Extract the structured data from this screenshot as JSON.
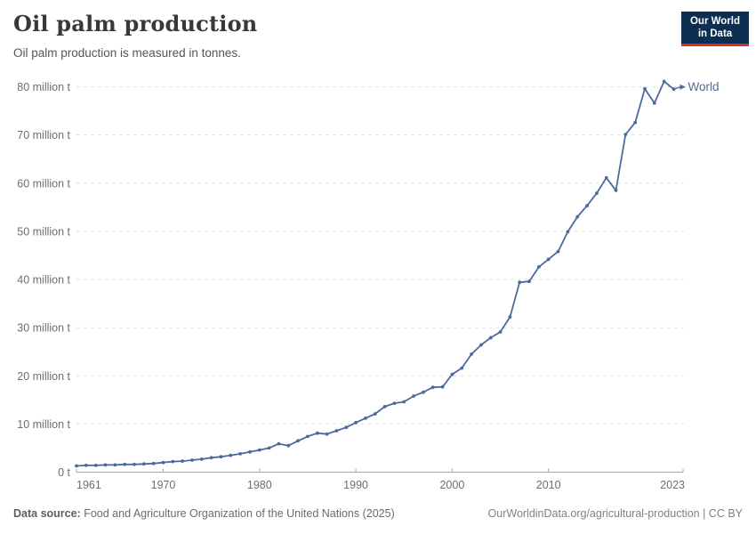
{
  "header": {
    "title": "Oil palm production",
    "subtitle": "Oil palm production is measured in tonnes.",
    "logo": {
      "line1": "Our World",
      "line2": "in Data"
    }
  },
  "chart_data": {
    "type": "line",
    "title": "Oil palm production",
    "unit": "tonnes",
    "values_unit": "million tonnes",
    "ylim": [
      0,
      80
    ],
    "grid": "horizontal dashed",
    "legend": "end-of-line label",
    "x": [
      1961,
      1962,
      1963,
      1964,
      1965,
      1966,
      1967,
      1968,
      1969,
      1970,
      1971,
      1972,
      1973,
      1974,
      1975,
      1976,
      1977,
      1978,
      1979,
      1980,
      1981,
      1982,
      1983,
      1984,
      1985,
      1986,
      1987,
      1988,
      1989,
      1990,
      1991,
      1992,
      1993,
      1994,
      1995,
      1996,
      1997,
      1998,
      1999,
      2000,
      2001,
      2002,
      2003,
      2004,
      2005,
      2006,
      2007,
      2008,
      2009,
      2010,
      2011,
      2012,
      2013,
      2014,
      2015,
      2016,
      2017,
      2018,
      2019,
      2020,
      2021,
      2022,
      2023
    ],
    "series": [
      {
        "name": "World",
        "color": "#4C6A9C",
        "values": [
          1.3,
          1.4,
          1.4,
          1.5,
          1.5,
          1.6,
          1.6,
          1.7,
          1.8,
          2.0,
          2.2,
          2.3,
          2.5,
          2.7,
          3.0,
          3.2,
          3.5,
          3.8,
          4.2,
          4.6,
          5.0,
          5.9,
          5.5,
          6.5,
          7.4,
          8.1,
          7.9,
          8.6,
          9.3,
          10.3,
          11.2,
          12.1,
          13.6,
          14.3,
          14.6,
          15.8,
          16.6,
          17.6,
          17.7,
          20.3,
          21.6,
          24.5,
          26.4,
          27.9,
          29.1,
          32.2,
          39.4,
          39.6,
          42.6,
          44.2,
          45.8,
          49.9,
          53.0,
          55.3,
          57.9,
          61.1,
          58.5,
          70.1,
          72.6,
          79.6,
          76.6,
          81.1,
          79.5
        ]
      }
    ],
    "yticks": [
      {
        "value": 0,
        "label": "0 t"
      },
      {
        "value": 10,
        "label": "10 million t"
      },
      {
        "value": 20,
        "label": "20 million t"
      },
      {
        "value": 30,
        "label": "30 million t"
      },
      {
        "value": 40,
        "label": "40 million t"
      },
      {
        "value": 50,
        "label": "50 million t"
      },
      {
        "value": 60,
        "label": "60 million t"
      },
      {
        "value": 70,
        "label": "70 million t"
      },
      {
        "value": 80,
        "label": "80 million t"
      }
    ],
    "xticks": [
      1961,
      1970,
      1980,
      1990,
      2000,
      2010,
      2023
    ]
  },
  "footer": {
    "source_label": "Data source:",
    "source_text": "Food and Agriculture Organization of the United Nations (2025)",
    "credit": "OurWorldinData.org/agricultural-production | CC BY"
  },
  "colors": {
    "line": "#4C6A9C",
    "grid": "#dddddd",
    "axis": "#a5a5a5",
    "tick_label": "#6e6e6e",
    "logo_bg": "#0d2e51",
    "logo_accent": "#dc2e21"
  }
}
